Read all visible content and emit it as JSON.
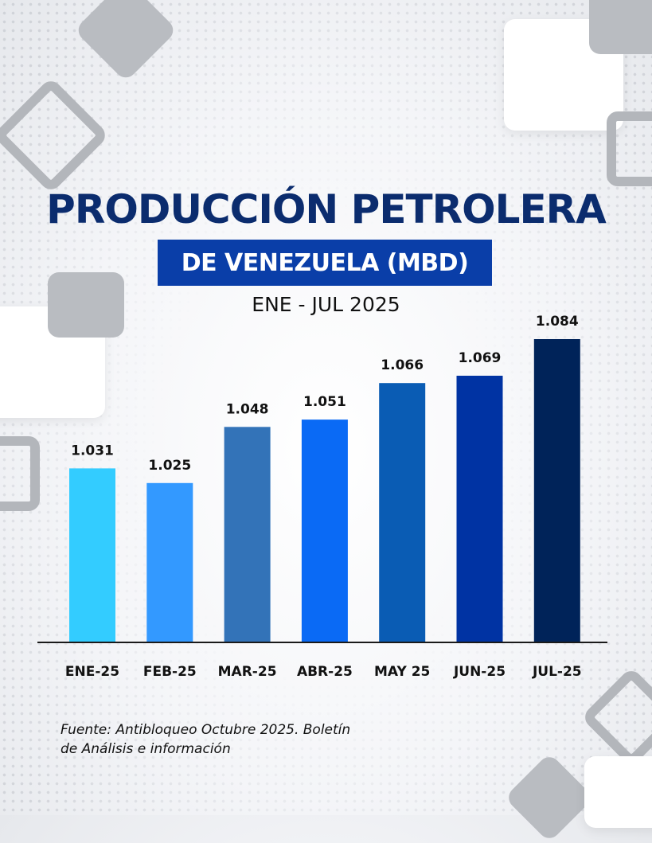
{
  "header": {
    "title": "PRODUCCIÓN PETROLERA",
    "subtitle": "DE VENEZUELA (MBD)",
    "period": "ENE - JUL 2025"
  },
  "footer": {
    "source_line1": "Fuente: Antibloqueo Octubre 2025. Boletín",
    "source_line2": "de Análisis e información"
  },
  "chart_data": {
    "type": "bar",
    "title": "PRODUCCIÓN PETROLERA DE VENEZUELA (MBD)",
    "subtitle": "ENE - JUL 2025",
    "categories": [
      "ENE-25",
      "FEB-25",
      "MAR-25",
      "ABR-25",
      "MAY 25",
      "JUN-25",
      "JUL-25"
    ],
    "values": [
      1.031,
      1.025,
      1.048,
      1.051,
      1.066,
      1.069,
      1.084
    ],
    "value_labels": [
      "1.031",
      "1.025",
      "1.048",
      "1.051",
      "1.066",
      "1.069",
      "1.084"
    ],
    "bar_colors": [
      "#33ccff",
      "#3399ff",
      "#3373b8",
      "#0a6af5",
      "#0a5cb4",
      "#0033a3",
      "#002359"
    ],
    "ylim": [
      0.96,
      1.09
    ],
    "grid": false,
    "legend": "none",
    "xlabel": "",
    "ylabel": ""
  }
}
